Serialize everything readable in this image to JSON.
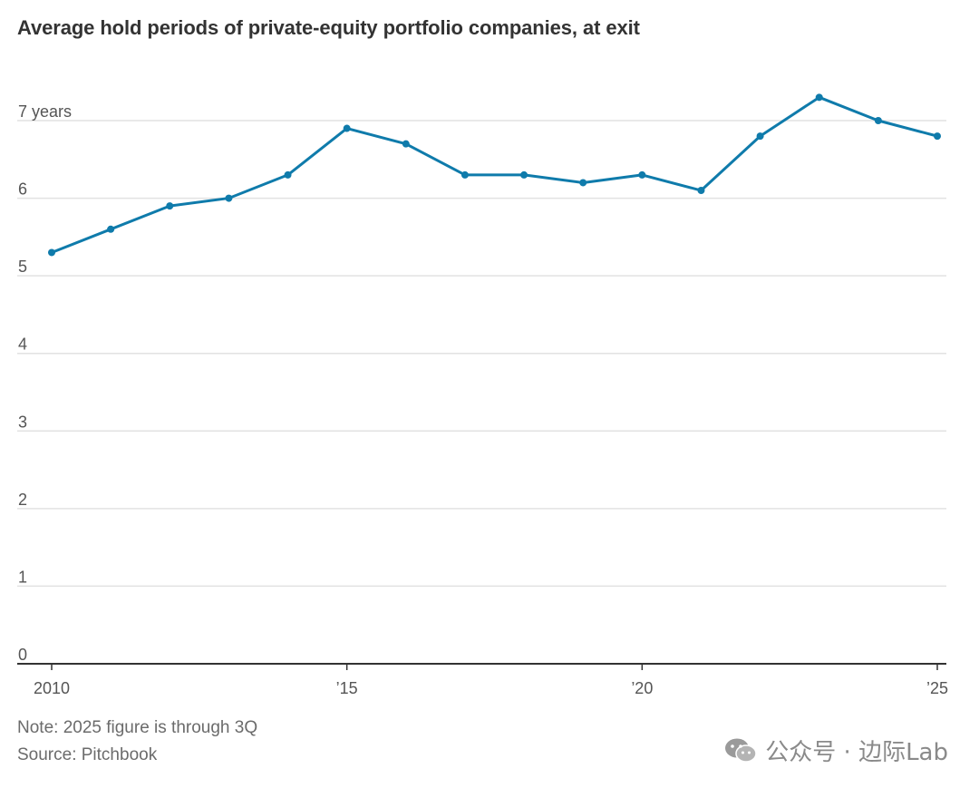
{
  "chart_data": {
    "type": "line",
    "title": "Average hold periods of private-equity portfolio companies, at exit",
    "xlabel": "",
    "ylabel": "",
    "x": [
      2010,
      2011,
      2012,
      2013,
      2014,
      2015,
      2016,
      2017,
      2018,
      2019,
      2020,
      2021,
      2022,
      2023,
      2024,
      2025
    ],
    "series": [
      {
        "name": "Average hold period (years)",
        "values": [
          5.3,
          5.6,
          5.9,
          6.0,
          6.3,
          6.9,
          6.7,
          6.3,
          6.3,
          6.2,
          6.3,
          6.1,
          6.8,
          7.3,
          7.0,
          6.8
        ],
        "color": "#0f7bab"
      }
    ],
    "ylim": [
      0,
      7
    ],
    "y_ticks": [
      0,
      1,
      2,
      3,
      4,
      5,
      6,
      7
    ],
    "y_tick_labels": [
      "0",
      "1",
      "2",
      "3",
      "4",
      "5",
      "6",
      "7 years"
    ],
    "x_ticks": [
      2010,
      2015,
      2020,
      2025
    ],
    "x_tick_labels": [
      "2010",
      "’15",
      "’20",
      "’25"
    ],
    "grid": true,
    "legend": "none",
    "note": "Note: 2025 figure is through 3Q",
    "source": "Source: Pitchbook",
    "colors": {
      "line": "#0f7bab",
      "grid": "#e2e2e2",
      "axis": "#333333"
    }
  },
  "watermark": {
    "text": "公众号 · 边际Lab",
    "icon": "wechat-icon"
  }
}
